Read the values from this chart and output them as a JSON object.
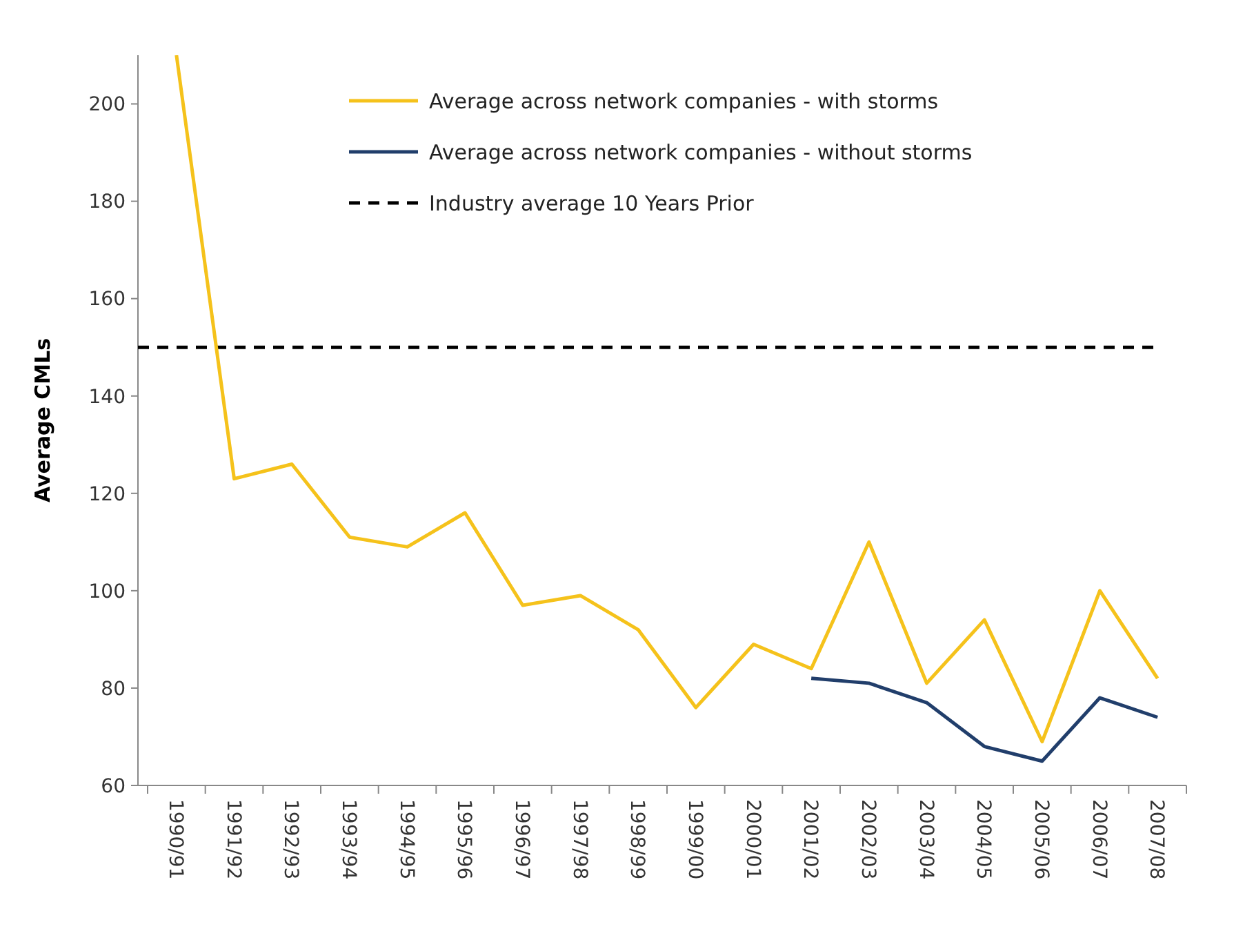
{
  "chart_data": {
    "type": "line",
    "ylabel": "Average CMLs",
    "categories": [
      "1990/91",
      "1991/92",
      "1992/93",
      "1993/94",
      "1994/95",
      "1995/96",
      "1996/97",
      "1997/98",
      "1998/99",
      "1999/00",
      "2000/01",
      "2001/02",
      "2002/03",
      "2003/04",
      "2004/05",
      "2005/06",
      "2006/07",
      "2007/08"
    ],
    "series": [
      {
        "name": "Average across network companies - with storms",
        "color": "#f5c21b",
        "values": [
          210,
          123,
          126,
          111,
          109,
          116,
          97,
          99,
          92,
          76,
          89,
          84,
          110,
          81,
          94,
          69,
          100,
          82
        ]
      },
      {
        "name": "Average across network companies - without storms",
        "color": "#213e6b",
        "values": [
          null,
          null,
          null,
          null,
          null,
          null,
          null,
          null,
          null,
          null,
          null,
          82,
          81,
          77,
          68,
          65,
          78,
          74
        ]
      }
    ],
    "ref_lines": [
      {
        "axis": "y",
        "value": 150,
        "label": "Industry average 10 Years Prior",
        "color": "#000000",
        "line_style": "dashed"
      }
    ],
    "ylim": [
      60,
      210
    ],
    "yticks": [
      60,
      80,
      100,
      120,
      140,
      160,
      180,
      200
    ],
    "grid": false,
    "legend": "top",
    "marker": "none",
    "line_style": "solid"
  }
}
